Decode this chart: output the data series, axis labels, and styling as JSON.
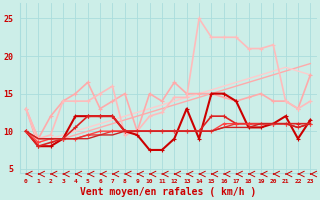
{
  "background_color": "#cceee8",
  "grid_color": "#aadddd",
  "xlabel": "Vent moyen/en rafales ( km/h )",
  "xlabel_color": "#cc0000",
  "xlabel_fontsize": 7,
  "xtick_color": "#cc0000",
  "ytick_color": "#cc0000",
  "ylim": [
    4.5,
    27
  ],
  "xlim": [
    -0.5,
    23.5
  ],
  "x": [
    0,
    1,
    2,
    3,
    4,
    5,
    6,
    7,
    8,
    9,
    10,
    11,
    12,
    13,
    14,
    15,
    16,
    17,
    18,
    19,
    20,
    21,
    22,
    23
  ],
  "lines": [
    {
      "y": [
        13,
        8,
        8,
        9,
        9.5,
        10,
        10.5,
        11,
        11.5,
        12,
        12.5,
        13,
        13.5,
        14,
        14.5,
        15,
        15.5,
        16,
        16.5,
        17,
        17.5,
        18,
        18.5,
        19
      ],
      "color": "#ffaaaa",
      "lw": 1.0,
      "marker": null
    },
    {
      "y": [
        13,
        8.5,
        9,
        9.5,
        10,
        10.5,
        11,
        11.5,
        12,
        12.5,
        13,
        13.5,
        14,
        14.5,
        15,
        15.5,
        16,
        16.5,
        17,
        17.5,
        18,
        18.5,
        18,
        17.5
      ],
      "color": "#ffcccc",
      "lw": 1.0,
      "marker": null
    },
    {
      "y": [
        13,
        9,
        12,
        14,
        15,
        16.5,
        13,
        14,
        15,
        10,
        15,
        14,
        16.5,
        15,
        15,
        15,
        14.5,
        14,
        14.5,
        15,
        14,
        14,
        13,
        17.5
      ],
      "color": "#ffaaaa",
      "lw": 1.2,
      "marker": "+"
    },
    {
      "y": [
        13,
        9,
        9.5,
        14,
        14,
        14,
        15,
        16,
        9.5,
        10,
        12,
        12.5,
        14.5,
        14.5,
        25,
        22.5,
        22.5,
        22.5,
        21,
        21,
        21.5,
        14,
        13,
        14
      ],
      "color": "#ffbbbb",
      "lw": 1.2,
      "marker": "+"
    },
    {
      "y": [
        10,
        8,
        8,
        9,
        12,
        12,
        12,
        12,
        10,
        9.5,
        7.5,
        7.5,
        9,
        13,
        9,
        15,
        15,
        14,
        10.5,
        10.5,
        11,
        12,
        9,
        11.5
      ],
      "color": "#cc0000",
      "lw": 1.5,
      "marker": "+"
    },
    {
      "y": [
        10,
        8,
        8.5,
        9,
        10.5,
        12,
        12,
        12,
        10,
        10,
        10,
        10,
        10,
        10,
        10,
        12,
        12,
        11,
        11,
        11,
        11,
        11,
        11,
        11
      ],
      "color": "#dd2222",
      "lw": 1.2,
      "marker": "+"
    },
    {
      "y": [
        10,
        8.5,
        9,
        9,
        9,
        9.5,
        10,
        10,
        10,
        10,
        10,
        10,
        10,
        10,
        10,
        10,
        11,
        11,
        11,
        11,
        11,
        11,
        10.5,
        11
      ],
      "color": "#ff4444",
      "lw": 1.0,
      "marker": "+"
    },
    {
      "y": [
        10,
        9,
        9,
        9,
        9,
        9.5,
        9.5,
        10,
        10,
        10,
        10,
        10,
        10,
        10,
        10,
        10,
        10.5,
        11,
        11,
        11,
        11,
        11,
        10.5,
        11
      ],
      "color": "#ee3333",
      "lw": 1.0,
      "marker": null
    },
    {
      "y": [
        10,
        9,
        9,
        9,
        9,
        9,
        9.5,
        9.5,
        10,
        10,
        10,
        10,
        10,
        10,
        10,
        10,
        10.5,
        10.5,
        10.5,
        11,
        11,
        11,
        10.5,
        11
      ],
      "color": "#cc2222",
      "lw": 1.0,
      "marker": null
    }
  ],
  "wind_arrow_color": "#cc0000",
  "ytick_positions": [
    5,
    10,
    15,
    20,
    25
  ],
  "ytick_labels": [
    "5",
    "10",
    "15",
    "20",
    "25"
  ]
}
